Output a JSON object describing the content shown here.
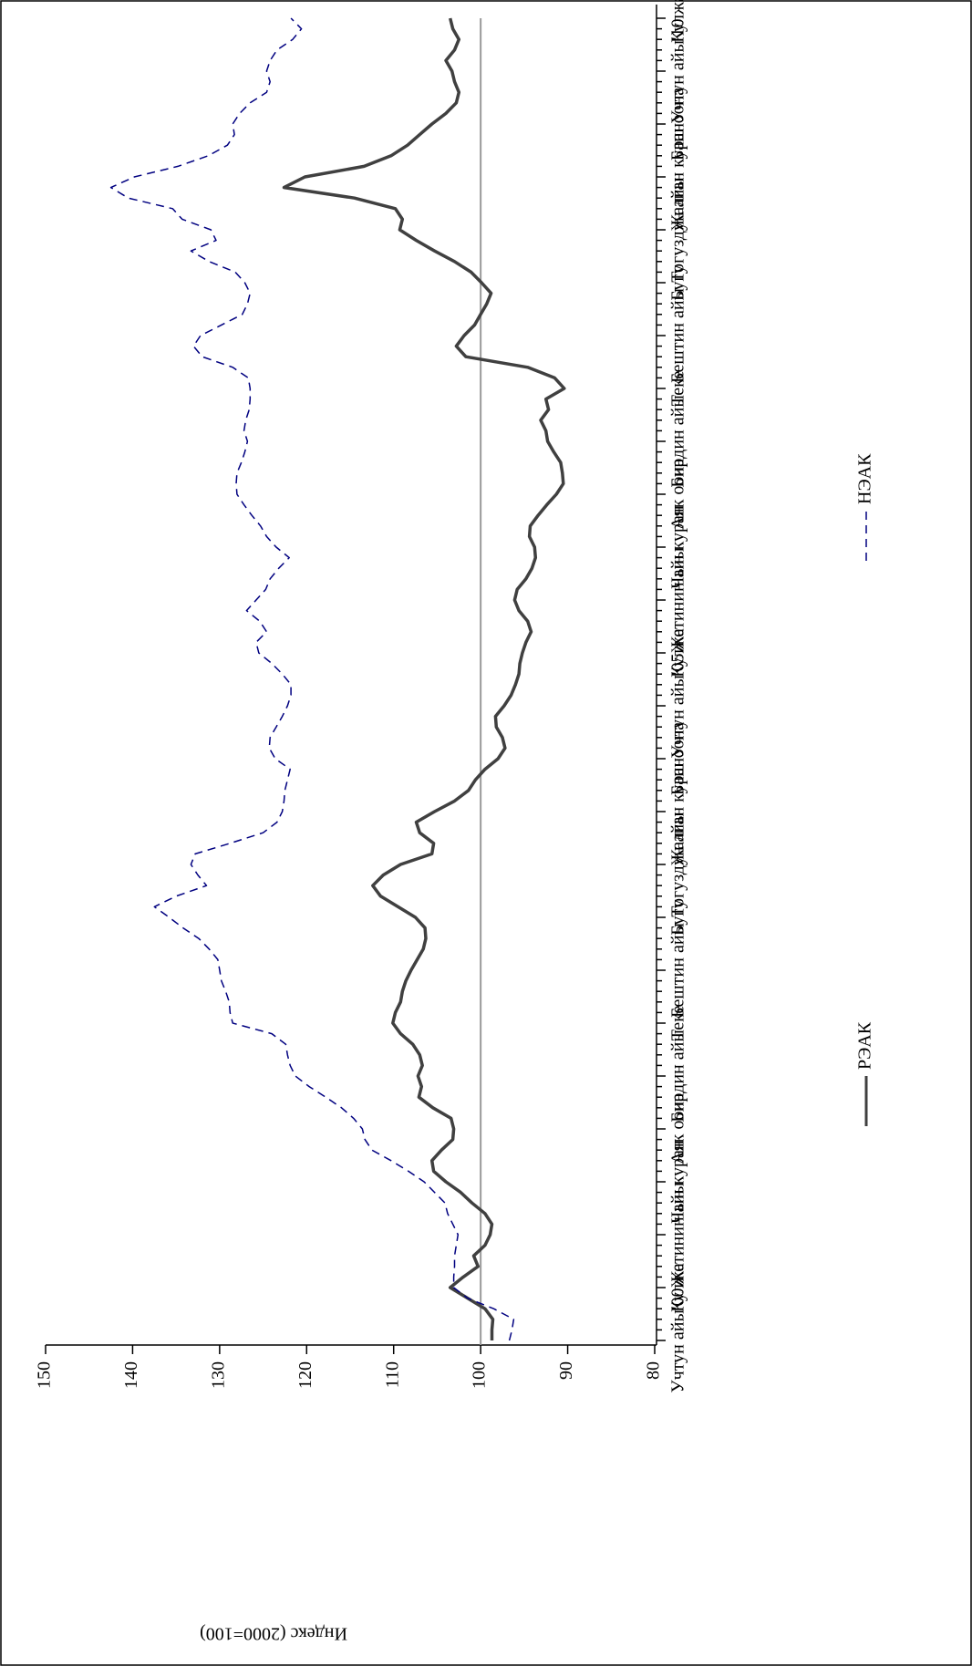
{
  "chart_data": {
    "type": "line",
    "ylabel": "Индекс (2000=100)",
    "categories": [
      "Учтун айы'00",
      null,
      null,
      null,
      null,
      "Кулжа",
      null,
      null,
      null,
      null,
      "Жетинин айы",
      null,
      null,
      null,
      null,
      "Чын куран",
      null,
      null,
      null,
      null,
      "Аяк оона",
      null,
      null,
      null,
      null,
      "Бирдин айы",
      null,
      null,
      null,
      null,
      "Теке",
      null,
      null,
      null,
      null,
      "Бештин айы",
      null,
      null,
      null,
      null,
      "Бугу",
      null,
      null,
      null,
      null,
      "Тогуздун айы",
      null,
      null,
      null,
      null,
      "Жалган куран",
      null,
      null,
      null,
      null,
      "Баш оона",
      null,
      null,
      null,
      null,
      "Учтун айы'05",
      null,
      null,
      null,
      null,
      "Кулжа",
      null,
      null,
      null,
      null,
      "Жетинин айы",
      null,
      null,
      null,
      null,
      "Чын куран",
      null,
      null,
      null,
      null,
      "Аяк оона",
      null,
      null,
      null,
      null,
      "Бирдин айы",
      null,
      null,
      null,
      null,
      "Теке",
      null,
      null,
      null,
      null,
      "Бештин айы",
      null,
      null,
      null,
      null,
      "Бугу",
      null,
      null,
      null,
      null,
      "Тогуздун айы",
      null,
      null,
      null,
      null,
      "Жалган куран",
      null,
      null,
      null,
      null,
      "Баш оона",
      null,
      null,
      null,
      null,
      "Учтун айы'10",
      null,
      null,
      null,
      null,
      "Кулжа"
    ],
    "series": [
      {
        "name": "РЭАК",
        "color": "#404040",
        "dash": false,
        "values": [
          98.7,
          98.7,
          98.6,
          99.5,
          101.5,
          103.5,
          102,
          100.3,
          100.8,
          99.5,
          98.9,
          98.7,
          99.5,
          101,
          102.3,
          104,
          105.4,
          105.6,
          104.5,
          103.2,
          103.1,
          103.4,
          105.5,
          107.1,
          106.8,
          107.2,
          106.7,
          107,
          107.8,
          109.2,
          110.1,
          109.8,
          109.2,
          109,
          108.6,
          108,
          107.3,
          106.6,
          106.3,
          106.4,
          107.5,
          109.5,
          111.5,
          112.4,
          111.2,
          109.2,
          105.6,
          105.4,
          107,
          107.4,
          105.3,
          103,
          101.4,
          100.6,
          99.5,
          98,
          97.2,
          97.5,
          98.2,
          98.3,
          97.3,
          96.5,
          96,
          95.6,
          95.5,
          95.2,
          94.8,
          94.2,
          94.6,
          95.6,
          96.1,
          95.8,
          94.8,
          94.1,
          93.7,
          93.8,
          94.4,
          94.3,
          93.4,
          92.4,
          91.3,
          90.5,
          90.6,
          90.8,
          91.6,
          92.3,
          92.5,
          93.1,
          92.2,
          92.5,
          90.4,
          91.5,
          94.6,
          101.7,
          102.8,
          101.9,
          100.7,
          100,
          99.3,
          98.8,
          99.9,
          101.1,
          103,
          105.3,
          107.4,
          109.3,
          109,
          109.8,
          114.5,
          122.6,
          120.2,
          113.4,
          110.3,
          108.4,
          107,
          105.6,
          104,
          102.8,
          102.5,
          103,
          103.3,
          104,
          103,
          102.5,
          103.2,
          103.5
        ]
      },
      {
        "name": "НЭАК",
        "color": "#000080",
        "dash": true,
        "values": [
          96.7,
          96.4,
          96.2,
          98.5,
          101.5,
          103.1,
          103.1,
          103,
          103,
          102.8,
          102.6,
          103.2,
          103.8,
          104.1,
          105.3,
          106.5,
          108.3,
          110.3,
          112.5,
          113.3,
          113.6,
          114.6,
          116,
          117.8,
          119.7,
          121.3,
          121.9,
          122.2,
          122.4,
          124,
          128.5,
          128.8,
          128.9,
          129.3,
          129.8,
          130,
          130.2,
          131.2,
          132.4,
          134.2,
          135.8,
          137.5,
          135,
          131.5,
          132.5,
          133.3,
          132.8,
          128.8,
          125,
          123.4,
          122.8,
          122.6,
          122.5,
          122.2,
          121.9,
          123.6,
          124.3,
          124.2,
          123.5,
          122.8,
          122.2,
          121.8,
          121.8,
          122.8,
          124,
          125.5,
          125.8,
          124.6,
          125.4,
          126.9,
          125.8,
          124.7,
          124.2,
          123.2,
          122,
          123.5,
          124.6,
          125.3,
          126.3,
          127.2,
          128,
          128.1,
          128,
          127.5,
          127.1,
          126.8,
          127.2,
          127,
          126.6,
          126.5,
          126.5,
          126.7,
          128.5,
          132,
          133,
          132.2,
          129.8,
          127.4,
          126.8,
          126.5,
          127.1,
          128.2,
          131.2,
          133.3,
          130.4,
          131,
          134.3,
          135.4,
          140.5,
          142.5,
          139.8,
          134.8,
          131.3,
          129.1,
          128.3,
          128.5,
          127.7,
          126.5,
          124.6,
          124.2,
          124.6,
          124.2,
          123.4,
          121.6,
          120.6,
          121.8
        ]
      }
    ],
    "reference_line": 100,
    "ylim": [
      80,
      150
    ],
    "yticks": [
      80,
      90,
      100,
      110,
      120,
      130,
      140,
      150
    ]
  }
}
